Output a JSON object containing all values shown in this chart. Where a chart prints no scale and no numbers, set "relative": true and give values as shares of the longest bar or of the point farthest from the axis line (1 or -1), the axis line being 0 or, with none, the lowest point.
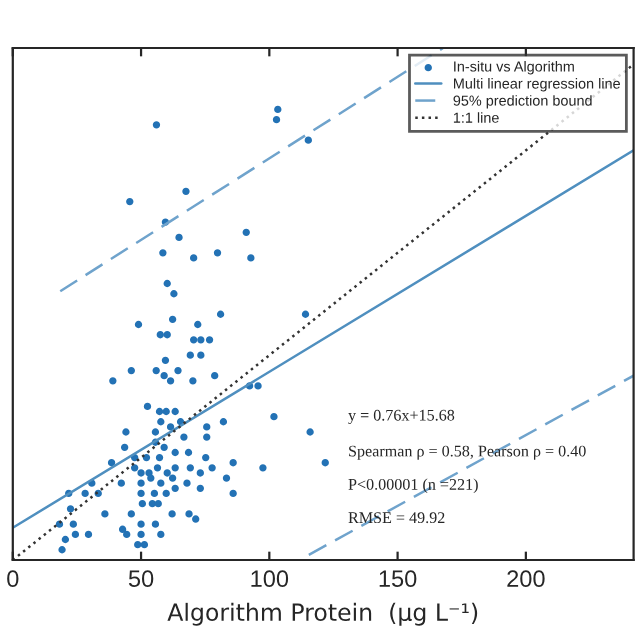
{
  "chart_data": {
    "type": "scatter",
    "xlabel": "Algorithm Protein  (μg L⁻¹)",
    "relative": true,
    "xlim": [
      0,
      242
    ],
    "xticks": [
      0,
      50,
      100,
      150,
      200
    ],
    "grid": false,
    "legend": "top right",
    "annotations": [
      "y = 0.76x+15.68",
      "Spearman ρ = 0.58, Pearson ρ = 0.40",
      "P<0.00001 (n =221)",
      "RMSE = 49.92"
    ],
    "series": [
      {
        "name": "In-situ vs Algorithm",
        "color": "#2372b5",
        "marker": "circle",
        "x": [
          56,
          103.3,
          102.8,
          115.2,
          67.5,
          45.6,
          59.5,
          91,
          64.8,
          58.5,
          70.5,
          79.8,
          92.8,
          60.2,
          62.8,
          81,
          114.1,
          62.3,
          49,
          72.1,
          57.5,
          60.2,
          70.5,
          73.3,
          76.7,
          69.2,
          73.3,
          59.5,
          46.2,
          55.9,
          64.4,
          78.7,
          39,
          59,
          61.5,
          70.2,
          92.3,
          95.6,
          52.5,
          57.2,
          59.8,
          63.3,
          65.4,
          57.7,
          61.5,
          44.1,
          55.6,
          75.6,
          82.1,
          101.8,
          115.9,
          75.6,
          66.7,
          43.6,
          55.6,
          59,
          63.3,
          38.5,
          47.5,
          52.1,
          57.2,
          68.5,
          75.2,
          77.7,
          85.9,
          97.5,
          121.8,
          47.5,
          50,
          53.1,
          56.4,
          60.2,
          63.3,
          69.2,
          73.1,
          50,
          53.8,
          57.7,
          62.3,
          67.9,
          83.3,
          42.3,
          30.8,
          33.3,
          28.2,
          21.8,
          50,
          55.2,
          59.8,
          63.3,
          73.1,
          85.9,
          22.5,
          35.9,
          46.2,
          54.4,
          56.7,
          62.1,
          50.5,
          68.7,
          71.3,
          18.2,
          23.6,
          42.8,
          50,
          55.6,
          57.7,
          24.4,
          29.5,
          50,
          44.4,
          20.5,
          19.2,
          48.7,
          51.3
        ],
        "values": [
          0.85,
          0.88,
          0.86,
          0.82,
          0.72,
          0.7,
          0.66,
          0.64,
          0.63,
          0.6,
          0.59,
          0.6,
          0.59,
          0.54,
          0.52,
          0.48,
          0.48,
          0.47,
          0.46,
          0.46,
          0.44,
          0.44,
          0.43,
          0.43,
          0.43,
          0.4,
          0.4,
          0.39,
          0.37,
          0.37,
          0.37,
          0.36,
          0.35,
          0.36,
          0.35,
          0.35,
          0.34,
          0.34,
          0.3,
          0.29,
          0.29,
          0.29,
          0.27,
          0.27,
          0.26,
          0.25,
          0.25,
          0.26,
          0.27,
          0.28,
          0.25,
          0.24,
          0.24,
          0.22,
          0.23,
          0.22,
          0.21,
          0.19,
          0.2,
          0.2,
          0.2,
          0.21,
          0.2,
          0.18,
          0.19,
          0.18,
          0.19,
          0.18,
          0.17,
          0.17,
          0.18,
          0.17,
          0.18,
          0.18,
          0.17,
          0.15,
          0.16,
          0.15,
          0.16,
          0.15,
          0.16,
          0.15,
          0.15,
          0.13,
          0.13,
          0.13,
          0.13,
          0.13,
          0.13,
          0.14,
          0.14,
          0.13,
          0.1,
          0.09,
          0.09,
          0.11,
          0.11,
          0.09,
          0.11,
          0.09,
          0.08,
          0.07,
          0.07,
          0.06,
          0.07,
          0.07,
          0.05,
          0.05,
          0.05,
          0.05,
          0.05,
          0.04,
          0.02,
          0.03,
          0.03
        ]
      },
      {
        "name": "Multi linear regression line",
        "type": "line",
        "color": "#4f8fbf",
        "line_style": "solid",
        "x": [
          0,
          242
        ],
        "values": [
          0.063,
          0.8
        ]
      },
      {
        "name": "95% prediction bound",
        "type": "line",
        "color": "#6fa3cc",
        "line_style": "dashed",
        "x": [
          18.5,
          167.7
        ],
        "values": [
          0.525,
          1.0
        ]
      },
      {
        "type": "line",
        "color": "#6fa3cc",
        "line_style": "dashed",
        "x": [
          115.4,
          242
        ],
        "values": [
          0.01,
          0.36
        ]
      },
      {
        "name": "1:1 line",
        "type": "line",
        "color": "#333333",
        "line_style": "dotted",
        "x": [
          0,
          242
        ],
        "values": [
          0,
          0.968
        ]
      }
    ]
  }
}
